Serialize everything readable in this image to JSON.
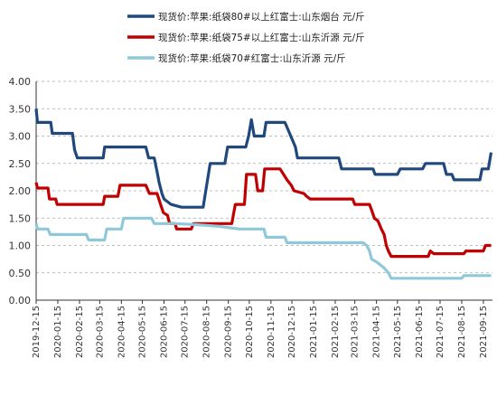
{
  "chart_data": {
    "type": "line",
    "legend_position": "top",
    "grid": true,
    "ylim": [
      0,
      4.0
    ],
    "yticks": [
      "4.00",
      "3.50",
      "3.00",
      "2.50",
      "2.00",
      "1.50",
      "1.00",
      "0.50",
      "0.00"
    ],
    "xlim": [
      "2019-12-15",
      "2021-09-28"
    ],
    "xticks": [
      "2019-12-15",
      "2020-01-15",
      "2020-02-15",
      "2020-03-15",
      "2020-04-15",
      "2020-05-15",
      "2020-06-15",
      "2020-07-15",
      "2020-08-15",
      "2020-09-15",
      "2020-10-15",
      "2020-11-15",
      "2020-12-15",
      "2021-01-15",
      "2021-02-15",
      "2021-03-15",
      "2021-04-15",
      "2021-05-15",
      "2021-06-15",
      "2021-07-15",
      "2021-08-15",
      "2021-09-15"
    ],
    "series": [
      {
        "name": "现货价:苹果:纸袋80#以上红富士:山东烟台 元/斤",
        "color": "#1f497d",
        "points": [
          [
            "2019-12-15",
            3.5
          ],
          [
            "2019-12-17",
            3.25
          ],
          [
            "2020-01-05",
            3.25
          ],
          [
            "2020-01-07",
            3.05
          ],
          [
            "2020-02-05",
            3.05
          ],
          [
            "2020-02-08",
            2.75
          ],
          [
            "2020-02-12",
            2.6
          ],
          [
            "2020-03-20",
            2.6
          ],
          [
            "2020-03-22",
            2.8
          ],
          [
            "2020-05-20",
            2.8
          ],
          [
            "2020-05-24",
            2.6
          ],
          [
            "2020-06-01",
            2.6
          ],
          [
            "2020-06-05",
            2.35
          ],
          [
            "2020-06-08",
            2.15
          ],
          [
            "2020-06-12",
            1.95
          ],
          [
            "2020-06-15",
            1.85
          ],
          [
            "2020-06-20",
            1.8
          ],
          [
            "2020-06-25",
            1.75
          ],
          [
            "2020-07-10",
            1.7
          ],
          [
            "2020-08-10",
            1.7
          ],
          [
            "2020-08-15",
            2.1
          ],
          [
            "2020-08-20",
            2.5
          ],
          [
            "2020-09-10",
            2.5
          ],
          [
            "2020-09-14",
            2.8
          ],
          [
            "2020-10-10",
            2.8
          ],
          [
            "2020-10-14",
            3.0
          ],
          [
            "2020-10-18",
            3.3
          ],
          [
            "2020-10-22",
            3.0
          ],
          [
            "2020-11-05",
            3.0
          ],
          [
            "2020-11-08",
            3.25
          ],
          [
            "2020-12-05",
            3.25
          ],
          [
            "2020-12-10",
            3.1
          ],
          [
            "2020-12-20",
            2.8
          ],
          [
            "2020-12-23",
            2.6
          ],
          [
            "2021-02-20",
            2.6
          ],
          [
            "2021-02-24",
            2.4
          ],
          [
            "2021-04-10",
            2.4
          ],
          [
            "2021-04-13",
            2.3
          ],
          [
            "2021-05-15",
            2.3
          ],
          [
            "2021-05-19",
            2.4
          ],
          [
            "2021-06-20",
            2.4
          ],
          [
            "2021-06-24",
            2.5
          ],
          [
            "2021-07-20",
            2.5
          ],
          [
            "2021-07-24",
            2.3
          ],
          [
            "2021-08-01",
            2.3
          ],
          [
            "2021-08-04",
            2.2
          ],
          [
            "2021-09-10",
            2.2
          ],
          [
            "2021-09-13",
            2.4
          ],
          [
            "2021-09-22",
            2.4
          ],
          [
            "2021-09-26",
            2.7
          ]
        ]
      },
      {
        "name": "现货价:苹果:纸袋75#以上红富士:山东沂源 元/斤",
        "color": "#c00000",
        "points": [
          [
            "2019-12-15",
            2.15
          ],
          [
            "2019-12-17",
            2.05
          ],
          [
            "2020-01-01",
            2.05
          ],
          [
            "2020-01-03",
            1.85
          ],
          [
            "2020-01-12",
            1.85
          ],
          [
            "2020-01-14",
            1.75
          ],
          [
            "2020-03-20",
            1.75
          ],
          [
            "2020-03-22",
            1.9
          ],
          [
            "2020-04-10",
            1.9
          ],
          [
            "2020-04-13",
            2.1
          ],
          [
            "2020-05-20",
            2.1
          ],
          [
            "2020-05-25",
            1.95
          ],
          [
            "2020-06-05",
            1.95
          ],
          [
            "2020-06-10",
            1.75
          ],
          [
            "2020-06-14",
            1.6
          ],
          [
            "2020-06-20",
            1.55
          ],
          [
            "2020-06-23",
            1.4
          ],
          [
            "2020-07-01",
            1.4
          ],
          [
            "2020-07-03",
            1.3
          ],
          [
            "2020-07-24",
            1.3
          ],
          [
            "2020-07-27",
            1.4
          ],
          [
            "2020-09-20",
            1.4
          ],
          [
            "2020-09-25",
            1.75
          ],
          [
            "2020-10-08",
            1.75
          ],
          [
            "2020-10-11",
            2.3
          ],
          [
            "2020-10-24",
            2.3
          ],
          [
            "2020-10-27",
            2.0
          ],
          [
            "2020-11-03",
            2.0
          ],
          [
            "2020-11-06",
            2.4
          ],
          [
            "2020-11-28",
            2.4
          ],
          [
            "2020-12-03",
            2.3
          ],
          [
            "2020-12-08",
            2.2
          ],
          [
            "2020-12-14",
            2.1
          ],
          [
            "2020-12-18",
            2.0
          ],
          [
            "2021-01-01",
            1.95
          ],
          [
            "2021-01-05",
            1.9
          ],
          [
            "2021-01-10",
            1.85
          ],
          [
            "2021-03-12",
            1.85
          ],
          [
            "2021-03-15",
            1.75
          ],
          [
            "2021-04-05",
            1.75
          ],
          [
            "2021-04-08",
            1.65
          ],
          [
            "2021-04-12",
            1.5
          ],
          [
            "2021-04-17",
            1.45
          ],
          [
            "2021-04-22",
            1.3
          ],
          [
            "2021-04-26",
            1.2
          ],
          [
            "2021-04-29",
            1.0
          ],
          [
            "2021-05-02",
            0.9
          ],
          [
            "2021-05-06",
            0.8
          ],
          [
            "2021-06-28",
            0.8
          ],
          [
            "2021-07-01",
            0.9
          ],
          [
            "2021-07-06",
            0.85
          ],
          [
            "2021-08-18",
            0.85
          ],
          [
            "2021-08-21",
            0.9
          ],
          [
            "2021-09-15",
            0.9
          ],
          [
            "2021-09-18",
            1.0
          ],
          [
            "2021-09-26",
            1.0
          ]
        ]
      },
      {
        "name": "现货价:苹果:纸袋70#红富士:山东沂源 元/斤",
        "color": "#8fc9d9",
        "points": [
          [
            "2019-12-15",
            1.4
          ],
          [
            "2019-12-17",
            1.3
          ],
          [
            "2020-01-01",
            1.3
          ],
          [
            "2020-01-04",
            1.2
          ],
          [
            "2020-02-25",
            1.2
          ],
          [
            "2020-02-28",
            1.1
          ],
          [
            "2020-03-22",
            1.1
          ],
          [
            "2020-03-25",
            1.3
          ],
          [
            "2020-04-15",
            1.3
          ],
          [
            "2020-04-18",
            1.5
          ],
          [
            "2020-05-28",
            1.5
          ],
          [
            "2020-06-01",
            1.4
          ],
          [
            "2020-07-01",
            1.4
          ],
          [
            "2020-08-01",
            1.38
          ],
          [
            "2020-09-01",
            1.35
          ],
          [
            "2020-10-01",
            1.3
          ],
          [
            "2020-11-05",
            1.3
          ],
          [
            "2020-11-08",
            1.15
          ],
          [
            "2020-12-05",
            1.15
          ],
          [
            "2020-12-08",
            1.05
          ],
          [
            "2021-03-27",
            1.05
          ],
          [
            "2021-04-01",
            1.0
          ],
          [
            "2021-04-05",
            0.9
          ],
          [
            "2021-04-08",
            0.75
          ],
          [
            "2021-04-15",
            0.7
          ],
          [
            "2021-04-25",
            0.6
          ],
          [
            "2021-05-02",
            0.5
          ],
          [
            "2021-05-06",
            0.4
          ],
          [
            "2021-08-15",
            0.4
          ],
          [
            "2021-08-18",
            0.45
          ],
          [
            "2021-09-26",
            0.45
          ]
        ]
      }
    ]
  }
}
